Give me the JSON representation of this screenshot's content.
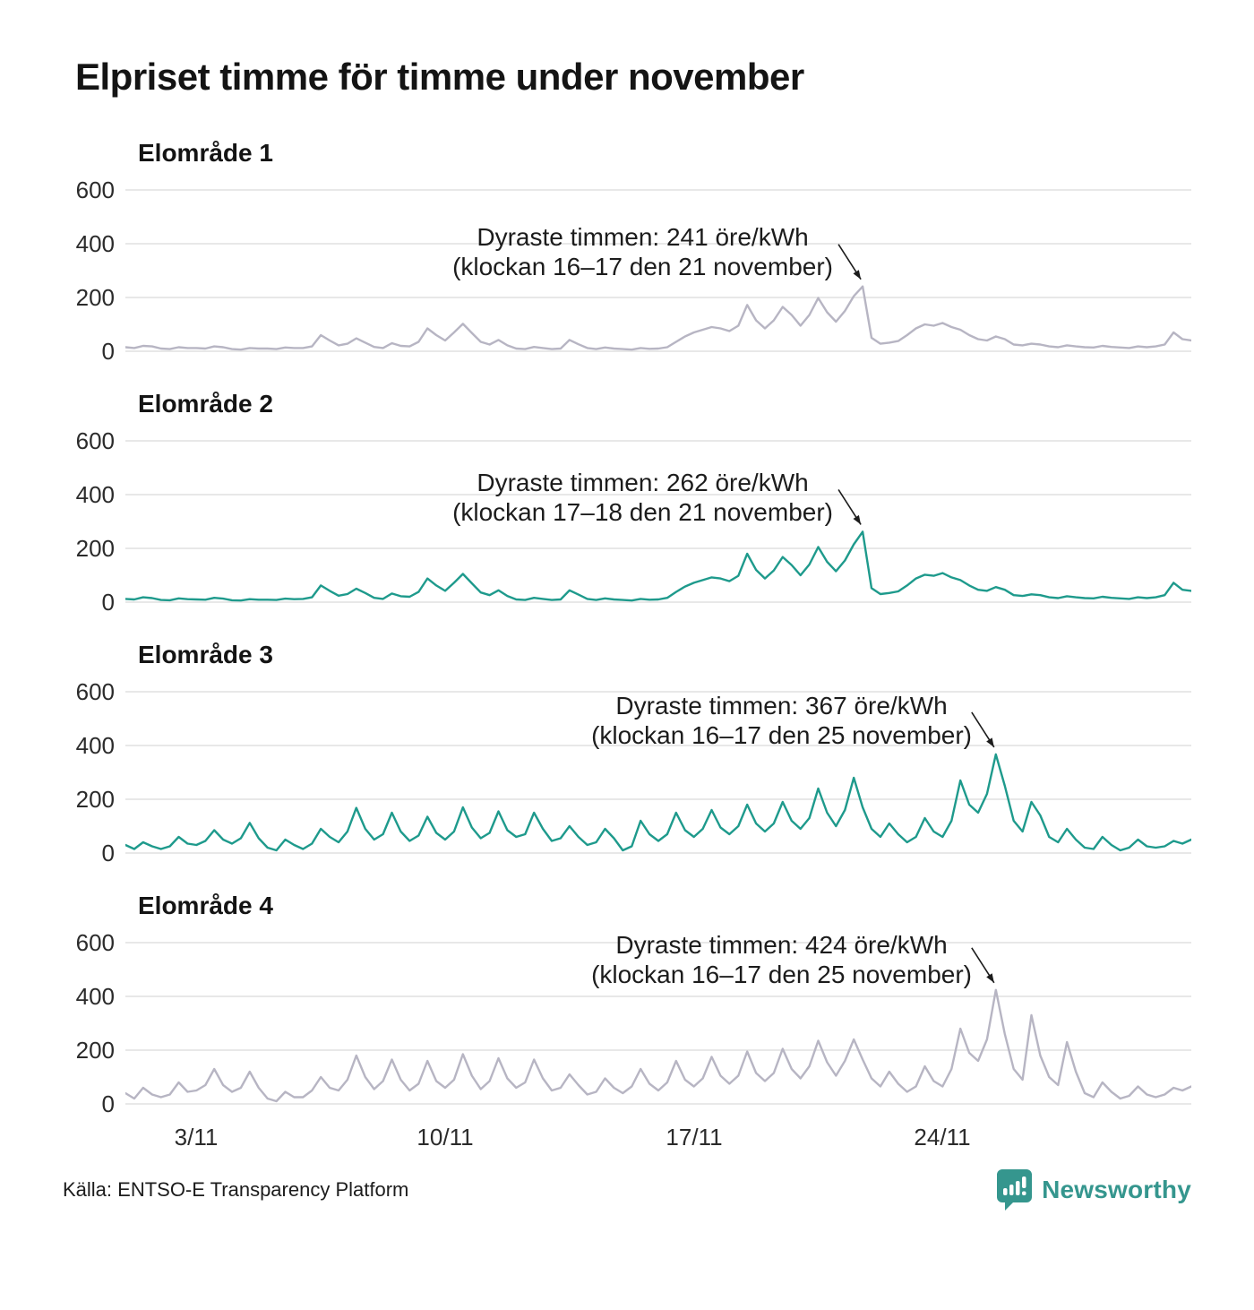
{
  "title": "Elpriset timme för timme under november",
  "axes": {
    "y_tick_labels": [
      "600",
      "400",
      "200",
      "0"
    ],
    "x_tick_labels": [
      "3/11",
      "10/11",
      "17/11",
      "24/11"
    ],
    "x_tick_days": [
      3,
      10,
      17,
      24
    ],
    "y_ticks": [
      0,
      200,
      400,
      600
    ],
    "grid": "on"
  },
  "style": {
    "teal": "#1e9a8c",
    "gray": "#b7b5c3",
    "grid_color": "#e8e8e8",
    "text_color": "#1c1c1c",
    "logo_teal": "#35968e"
  },
  "footer": {
    "source": "Källa: ENTSO-E Transparency Platform",
    "logo_text": "Newsworthy"
  },
  "chart_data": [
    {
      "type": "line",
      "title": "Elområde 1",
      "color": "#b7b5c3",
      "ylim": [
        0,
        650
      ],
      "x_range_days": [
        1,
        31
      ],
      "points_per_day": 4,
      "unit": "öre/kWh",
      "annotation": {
        "line1": "Dyraste timmen: 241 öre/kWh",
        "line2": "(klockan 16–17 den 21 november)",
        "peak_value": 241,
        "peak_time": "16–17",
        "peak_date": "21 november"
      },
      "values": [
        15,
        12,
        20,
        18,
        10,
        8,
        15,
        12,
        12,
        10,
        18,
        15,
        8,
        6,
        12,
        10,
        10,
        8,
        14,
        12,
        12,
        18,
        60,
        40,
        22,
        28,
        48,
        32,
        16,
        12,
        30,
        20,
        18,
        35,
        85,
        60,
        40,
        70,
        102,
        68,
        35,
        25,
        42,
        22,
        10,
        8,
        16,
        12,
        8,
        10,
        42,
        26,
        12,
        8,
        14,
        10,
        8,
        6,
        12,
        9,
        10,
        15,
        35,
        55,
        70,
        80,
        90,
        85,
        75,
        95,
        172,
        115,
        85,
        115,
        165,
        135,
        95,
        135,
        198,
        145,
        110,
        150,
        205,
        241,
        50,
        28,
        32,
        38,
        60,
        85,
        100,
        95,
        105,
        90,
        80,
        60,
        45,
        40,
        55,
        45,
        25,
        22,
        28,
        25,
        18,
        15,
        22,
        18,
        15,
        14,
        20,
        16,
        14,
        12,
        18,
        15,
        18,
        25,
        70,
        45,
        40
      ]
    },
    {
      "type": "line",
      "title": "Elområde 2",
      "color": "#1e9a8c",
      "ylim": [
        0,
        650
      ],
      "x_range_days": [
        1,
        31
      ],
      "points_per_day": 4,
      "unit": "öre/kWh",
      "annotation": {
        "line1": "Dyraste timmen: 262 öre/kWh",
        "line2": "(klockan 17–18 den 21 november)",
        "peak_value": 262,
        "peak_time": "17–18",
        "peak_date": "21 november"
      },
      "values": [
        12,
        10,
        18,
        15,
        8,
        7,
        14,
        11,
        10,
        9,
        16,
        13,
        7,
        6,
        11,
        9,
        9,
        8,
        13,
        11,
        12,
        18,
        62,
        42,
        24,
        30,
        50,
        34,
        16,
        12,
        32,
        22,
        20,
        38,
        88,
        62,
        42,
        72,
        105,
        70,
        36,
        26,
        44,
        23,
        10,
        8,
        16,
        12,
        8,
        10,
        44,
        28,
        12,
        8,
        14,
        10,
        8,
        6,
        12,
        9,
        10,
        16,
        38,
        58,
        72,
        82,
        92,
        88,
        78,
        98,
        180,
        120,
        88,
        118,
        168,
        138,
        100,
        140,
        205,
        150,
        115,
        155,
        215,
        262,
        52,
        30,
        34,
        40,
        62,
        88,
        102,
        98,
        108,
        92,
        82,
        62,
        46,
        42,
        56,
        46,
        26,
        23,
        29,
        26,
        18,
        15,
        22,
        18,
        15,
        14,
        20,
        16,
        14,
        12,
        18,
        15,
        18,
        26,
        72,
        46,
        42
      ]
    },
    {
      "type": "line",
      "title": "Elområde 3",
      "color": "#1e9a8c",
      "ylim": [
        0,
        650
      ],
      "x_range_days": [
        1,
        31
      ],
      "points_per_day": 4,
      "unit": "öre/kWh",
      "annotation": {
        "line1": "Dyraste timmen: 367 öre/kWh",
        "line2": "(klockan 16–17 den 25 november)",
        "peak_value": 367,
        "peak_time": "16–17",
        "peak_date": "25 november"
      },
      "values": [
        30,
        15,
        40,
        25,
        15,
        25,
        60,
        35,
        30,
        45,
        85,
        50,
        35,
        55,
        112,
        55,
        20,
        10,
        50,
        30,
        15,
        35,
        90,
        60,
        40,
        80,
        168,
        90,
        50,
        70,
        150,
        80,
        45,
        65,
        135,
        75,
        50,
        80,
        170,
        95,
        55,
        75,
        155,
        85,
        60,
        70,
        150,
        90,
        45,
        55,
        100,
        60,
        30,
        40,
        90,
        55,
        10,
        25,
        120,
        70,
        45,
        70,
        150,
        85,
        60,
        90,
        160,
        95,
        70,
        100,
        180,
        110,
        80,
        110,
        190,
        120,
        90,
        130,
        240,
        150,
        100,
        160,
        280,
        170,
        90,
        60,
        110,
        70,
        40,
        60,
        130,
        80,
        60,
        120,
        270,
        180,
        150,
        220,
        367,
        250,
        120,
        80,
        190,
        140,
        60,
        40,
        90,
        50,
        20,
        15,
        60,
        30,
        10,
        20,
        50,
        25,
        20,
        25,
        45,
        35,
        50
      ]
    },
    {
      "type": "line",
      "title": "Elområde 4",
      "color": "#b7b5c3",
      "ylim": [
        0,
        650
      ],
      "x_range_days": [
        1,
        31
      ],
      "points_per_day": 4,
      "unit": "öre/kWh",
      "annotation": {
        "line1": "Dyraste timmen: 424 öre/kWh",
        "line2": "(klockan 16–17 den 25 november)",
        "peak_value": 424,
        "peak_time": "16–17",
        "peak_date": "25 november"
      },
      "values": [
        40,
        20,
        60,
        35,
        25,
        35,
        80,
        45,
        50,
        70,
        130,
        70,
        45,
        60,
        120,
        60,
        20,
        10,
        45,
        25,
        25,
        50,
        100,
        60,
        50,
        90,
        180,
        100,
        55,
        85,
        165,
        90,
        50,
        75,
        160,
        85,
        60,
        90,
        185,
        105,
        55,
        85,
        170,
        95,
        60,
        80,
        165,
        95,
        50,
        60,
        110,
        70,
        35,
        45,
        95,
        60,
        40,
        65,
        130,
        75,
        50,
        80,
        160,
        90,
        65,
        95,
        175,
        105,
        75,
        105,
        195,
        115,
        85,
        115,
        205,
        130,
        95,
        140,
        235,
        155,
        105,
        160,
        240,
        165,
        95,
        65,
        120,
        75,
        45,
        65,
        140,
        85,
        65,
        130,
        280,
        190,
        160,
        240,
        424,
        260,
        130,
        90,
        330,
        180,
        100,
        70,
        230,
        120,
        40,
        25,
        80,
        45,
        20,
        30,
        65,
        35,
        25,
        35,
        60,
        50,
        65
      ]
    }
  ]
}
